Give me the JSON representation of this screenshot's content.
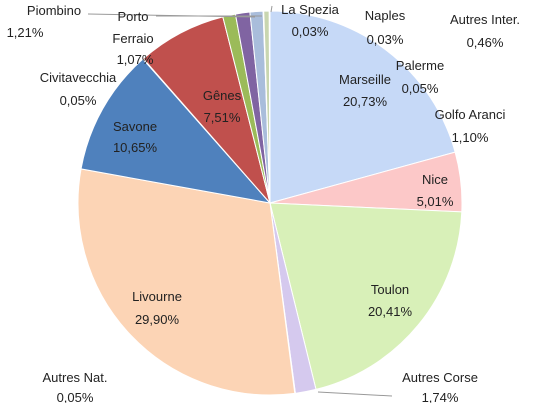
{
  "chart_data": {
    "type": "pie",
    "categories": [
      "Marseille",
      "Nice",
      "Toulon",
      "Autres Corse",
      "Autres Nat.",
      "Livourne",
      "Savone",
      "Civitavecchia",
      "Gênes",
      "Porto Ferraio",
      "Piombino",
      "Golfo Aranci",
      "Palerme",
      "Autres Inter.",
      "Naples",
      "La Spezia"
    ],
    "values": [
      20.73,
      5.01,
      20.41,
      1.74,
      0.05,
      29.9,
      10.65,
      0.05,
      7.51,
      1.07,
      1.21,
      1.1,
      0.05,
      0.46,
      0.03,
      0.03
    ],
    "value_labels": [
      "20,73%",
      "5,01%",
      "20,41%",
      "1,74%",
      "0,05%",
      "29,90%",
      "10,65%",
      "0,05%",
      "7,51%",
      "1,07%",
      "1,21%",
      "1,10%",
      "0,05%",
      "0,46%",
      "0,03%",
      "0,03%"
    ],
    "colors": [
      "#c6d9f7",
      "#fcc8c8",
      "#d8f0b8",
      "#d5c9ee",
      "#b9e3ef",
      "#fcd4b5",
      "#4f81bd",
      "#6a8fc7",
      "#c0504d",
      "#9bbb59",
      "#8064a2",
      "#a9bddb",
      "#d9c3c2",
      "#c9d6b0",
      "#bfb2d3",
      "#a8d6e2"
    ]
  }
}
